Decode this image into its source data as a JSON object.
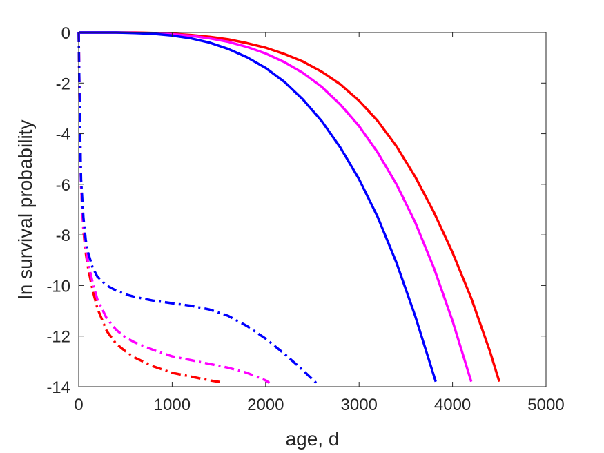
{
  "chart_data": {
    "type": "line",
    "title": "",
    "xlabel": "age, d",
    "ylabel": "ln survival probability",
    "xlim": [
      0,
      5000
    ],
    "ylim": [
      -14,
      0
    ],
    "xticks": [
      0,
      1000,
      2000,
      3000,
      4000,
      5000
    ],
    "yticks": [
      0,
      -2,
      -4,
      -6,
      -8,
      -10,
      -12,
      -14
    ],
    "grid": false,
    "legend": "none",
    "series": [
      {
        "color": "#ff0000",
        "style": "solid",
        "x": [
          0,
          200,
          400,
          600,
          800,
          1000,
          1200,
          1400,
          1600,
          1800,
          2000,
          2200,
          2400,
          2600,
          2800,
          3000,
          3200,
          3400,
          3600,
          3800,
          4000,
          4200,
          4400,
          4500
        ],
        "y": [
          0,
          0,
          0,
          0,
          -0.02,
          -0.05,
          -0.1,
          -0.17,
          -0.27,
          -0.42,
          -0.6,
          -0.85,
          -1.15,
          -1.55,
          -2.05,
          -2.7,
          -3.5,
          -4.5,
          -5.7,
          -7.1,
          -8.7,
          -10.5,
          -12.6,
          -13.8
        ]
      },
      {
        "color": "#ff00ff",
        "style": "solid",
        "x": [
          0,
          200,
          400,
          600,
          800,
          1000,
          1200,
          1400,
          1600,
          1800,
          2000,
          2200,
          2400,
          2600,
          2800,
          3000,
          3200,
          3400,
          3600,
          3800,
          4000,
          4200
        ],
        "y": [
          0,
          0,
          0,
          -0.01,
          -0.03,
          -0.07,
          -0.13,
          -0.23,
          -0.37,
          -0.57,
          -0.83,
          -1.17,
          -1.6,
          -2.15,
          -2.85,
          -3.7,
          -4.75,
          -6.0,
          -7.5,
          -9.3,
          -11.4,
          -13.8
        ]
      },
      {
        "color": "#0000ff",
        "style": "solid",
        "x": [
          0,
          200,
          400,
          600,
          800,
          1000,
          1200,
          1400,
          1600,
          1800,
          2000,
          2200,
          2400,
          2600,
          2800,
          3000,
          3200,
          3400,
          3600,
          3820
        ],
        "y": [
          0,
          0,
          0,
          -0.02,
          -0.05,
          -0.12,
          -0.23,
          -0.4,
          -0.65,
          -0.98,
          -1.4,
          -1.95,
          -2.65,
          -3.5,
          -4.55,
          -5.8,
          -7.3,
          -9.1,
          -11.2,
          -13.8
        ]
      },
      {
        "color": "#ff0000",
        "style": "dashdot",
        "x": [
          0,
          10,
          25,
          50,
          75,
          100,
          150,
          200,
          300,
          400,
          500,
          600,
          800,
          1000,
          1200,
          1400,
          1520
        ],
        "y": [
          0,
          -3.0,
          -6.0,
          -7.8,
          -8.7,
          -9.3,
          -10.2,
          -10.9,
          -11.8,
          -12.3,
          -12.6,
          -12.85,
          -13.2,
          -13.45,
          -13.6,
          -13.75,
          -13.82
        ]
      },
      {
        "color": "#ff00ff",
        "style": "dashdot",
        "x": [
          0,
          10,
          25,
          50,
          75,
          100,
          150,
          200,
          300,
          400,
          500,
          600,
          800,
          1000,
          1200,
          1400,
          1600,
          1800,
          1900,
          2000,
          2040
        ],
        "y": [
          0,
          -3.0,
          -6.0,
          -7.7,
          -8.5,
          -9.1,
          -9.9,
          -10.55,
          -11.3,
          -11.75,
          -12.05,
          -12.25,
          -12.55,
          -12.8,
          -12.95,
          -13.1,
          -13.25,
          -13.45,
          -13.6,
          -13.75,
          -13.85
        ]
      },
      {
        "color": "#0000ff",
        "style": "dashdot",
        "x": [
          0,
          10,
          25,
          50,
          75,
          100,
          150,
          200,
          300,
          400,
          500,
          600,
          800,
          1000,
          1200,
          1400,
          1600,
          1800,
          2000,
          2200,
          2400,
          2540
        ],
        "y": [
          0,
          -3.0,
          -5.8,
          -7.3,
          -8.2,
          -8.7,
          -9.3,
          -9.65,
          -10.0,
          -10.2,
          -10.35,
          -10.45,
          -10.6,
          -10.7,
          -10.8,
          -10.95,
          -11.2,
          -11.6,
          -12.1,
          -12.7,
          -13.35,
          -13.85
        ]
      }
    ]
  }
}
